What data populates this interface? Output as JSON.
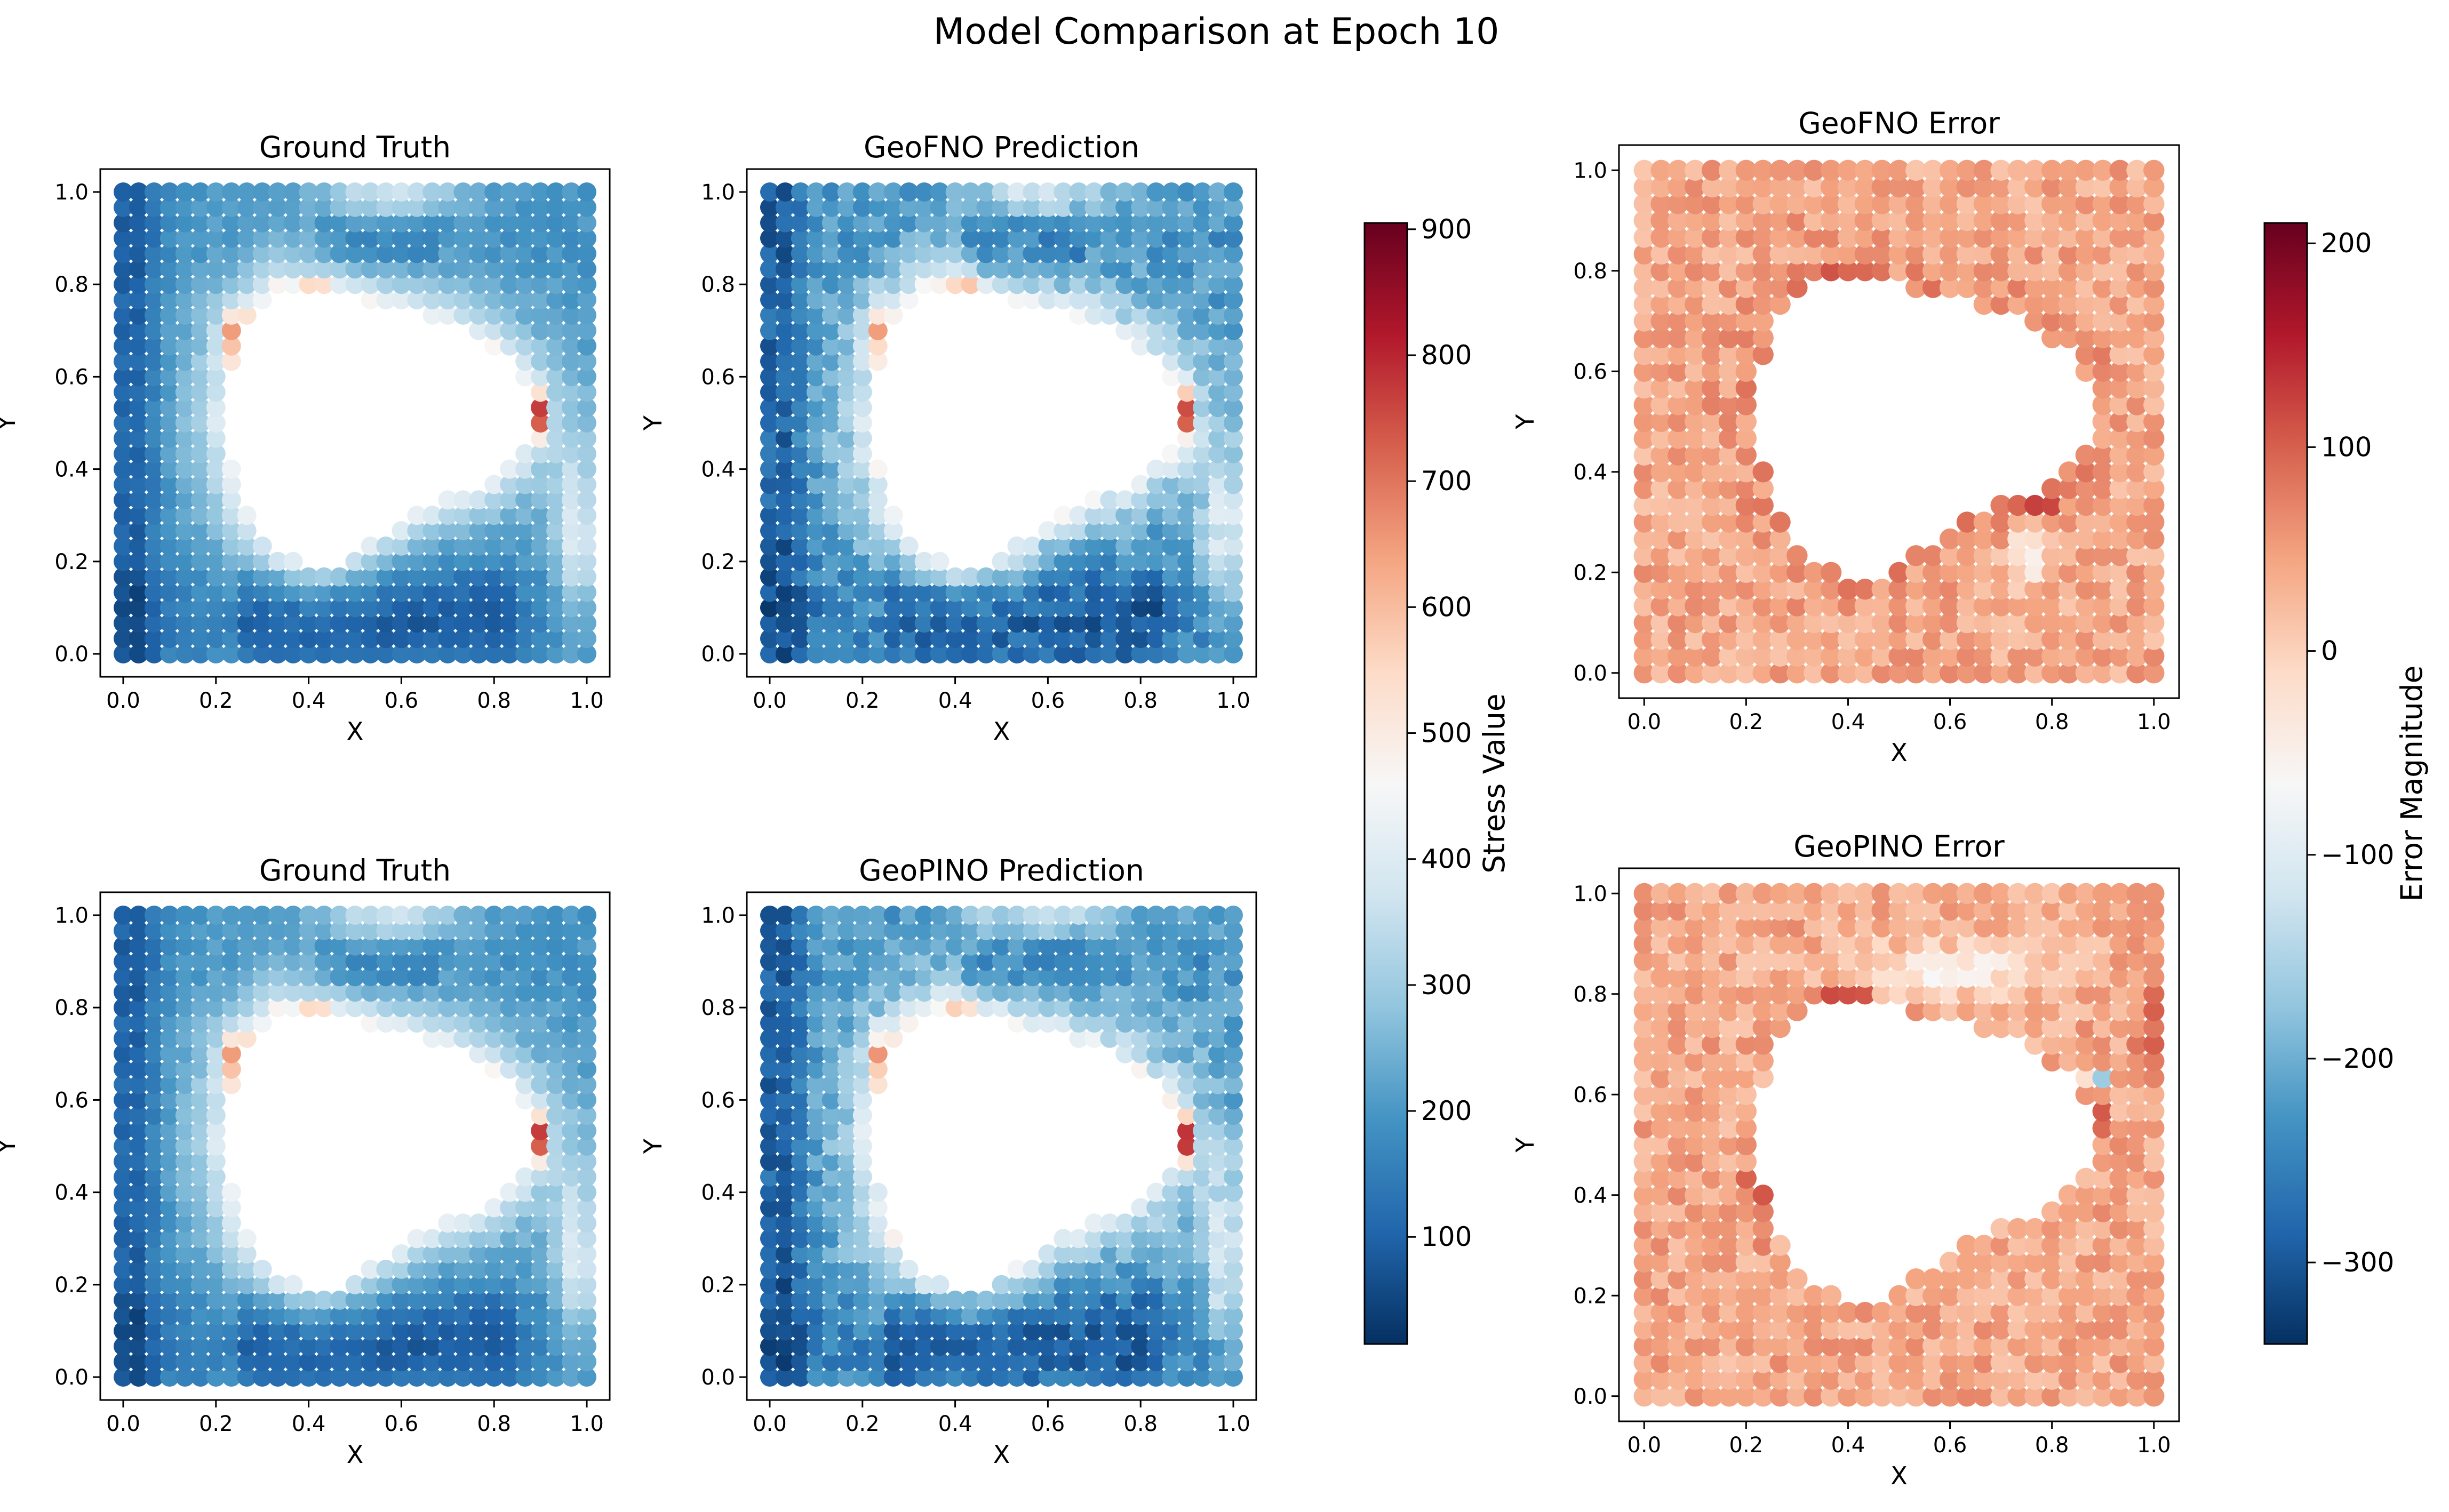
{
  "chart_data": {
    "title": "Model Comparison at Epoch 10",
    "type": "scatter",
    "panels": [
      {
        "id": "gt-top",
        "title": "Ground Truth",
        "xlabel": "X",
        "ylabel": "Y",
        "xlim": [
          0,
          1
        ],
        "ylim": [
          0,
          1
        ],
        "field": "stress",
        "colorbar": "stress"
      },
      {
        "id": "geofno-pred",
        "title": "GeoFNO Prediction",
        "xlabel": "X",
        "ylabel": "Y",
        "xlim": [
          0,
          1
        ],
        "ylim": [
          0,
          1
        ],
        "field": "stress_pred_fno",
        "colorbar": "stress"
      },
      {
        "id": "gt-bottom",
        "title": "Ground Truth",
        "xlabel": "X",
        "ylabel": "Y",
        "xlim": [
          0,
          1
        ],
        "ylim": [
          0,
          1
        ],
        "field": "stress",
        "colorbar": "stress"
      },
      {
        "id": "geopino-pred",
        "title": "GeoPINO Prediction",
        "xlabel": "X",
        "ylabel": "Y",
        "xlim": [
          0,
          1
        ],
        "ylim": [
          0,
          1
        ],
        "field": "stress_pred_pino",
        "colorbar": "stress"
      },
      {
        "id": "geofno-err",
        "title": "GeoFNO Error",
        "xlabel": "X",
        "ylabel": "Y",
        "xlim": [
          0,
          1
        ],
        "ylim": [
          0,
          1
        ],
        "field": "error_fno",
        "colorbar": "error"
      },
      {
        "id": "geopino-err",
        "title": "GeoPINO Error",
        "xlabel": "X",
        "ylabel": "Y",
        "xlim": [
          0,
          1
        ],
        "ylim": [
          0,
          1
        ],
        "field": "error_pino",
        "colorbar": "error"
      }
    ],
    "ticks": [
      "0.0",
      "0.2",
      "0.4",
      "0.6",
      "0.8",
      "1.0"
    ],
    "colorbars": {
      "stress": {
        "label": "Stress Value",
        "range": [
          15,
          905
        ],
        "ticks": [
          "100",
          "200",
          "300",
          "400",
          "500",
          "600",
          "700",
          "800",
          "900"
        ],
        "tick_values": [
          100,
          200,
          300,
          400,
          500,
          600,
          700,
          800,
          900
        ],
        "colormap": "RdBu_r"
      },
      "error": {
        "label": "Error Magnitude",
        "range": [
          -340,
          210
        ],
        "ticks": [
          "200",
          "100",
          "0",
          "−100",
          "−200",
          "−300"
        ],
        "tick_values": [
          200,
          100,
          0,
          -100,
          -200,
          -300
        ],
        "colormap": "RdBu_r"
      }
    },
    "colormap_stops": [
      "#053061",
      "#2166ac",
      "#4393c3",
      "#92c5de",
      "#d1e5f0",
      "#f7f7f7",
      "#fddbc7",
      "#f4a582",
      "#d6604d",
      "#b2182b",
      "#67001f"
    ],
    "hole": {
      "description_polygon_xy": [
        [
          0.33,
          0.8
        ],
        [
          0.4,
          0.8
        ],
        [
          0.5,
          0.77
        ],
        [
          0.6,
          0.75
        ],
        [
          0.7,
          0.72
        ],
        [
          0.78,
          0.68
        ],
        [
          0.85,
          0.62
        ],
        [
          0.88,
          0.55
        ],
        [
          0.88,
          0.48
        ],
        [
          0.84,
          0.42
        ],
        [
          0.78,
          0.37
        ],
        [
          0.7,
          0.34
        ],
        [
          0.62,
          0.3
        ],
        [
          0.55,
          0.25
        ],
        [
          0.47,
          0.2
        ],
        [
          0.4,
          0.19
        ],
        [
          0.33,
          0.22
        ],
        [
          0.27,
          0.3
        ],
        [
          0.24,
          0.4
        ],
        [
          0.22,
          0.5
        ],
        [
          0.23,
          0.62
        ],
        [
          0.26,
          0.72
        ]
      ]
    }
  }
}
